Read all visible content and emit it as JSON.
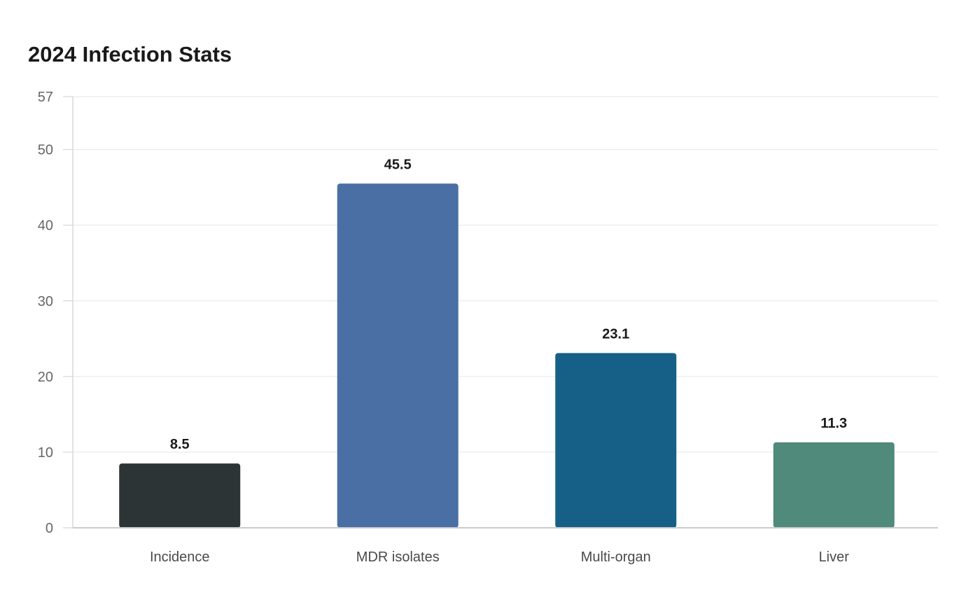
{
  "chart_data": {
    "type": "bar",
    "title": "2024 Infection Stats",
    "xlabel": "",
    "ylabel": "",
    "categories": [
      "Incidence",
      "MDR isolates",
      "Multi-organ",
      "Liver"
    ],
    "values": [
      8.5,
      45.5,
      23.1,
      11.3
    ],
    "value_labels": [
      "8.5",
      "45.5",
      "23.1",
      "11.3"
    ],
    "colors": [
      "#2d3436",
      "#4a6fa5",
      "#166088",
      "#4f8a7a"
    ],
    "ylim": [
      0,
      57
    ],
    "yticks": [
      0,
      10,
      20,
      30,
      40,
      50,
      57
    ],
    "grid": true,
    "legend": "none"
  }
}
